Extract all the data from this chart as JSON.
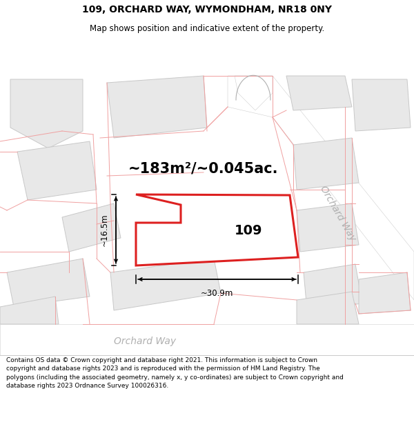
{
  "title": "109, ORCHARD WAY, WYMONDHAM, NR18 0NY",
  "subtitle": "Map shows position and indicative extent of the property.",
  "footer": "Contains OS data © Crown copyright and database right 2021. This information is subject to Crown copyright and database rights 2023 and is reproduced with the permission of HM Land Registry. The polygons (including the associated geometry, namely x, y co-ordinates) are subject to Crown copyright and database rights 2023 Ordnance Survey 100026316.",
  "area_text": "~183m²/~0.045ac.",
  "label_109": "109",
  "dim_width": "~30.9m",
  "dim_height": "~16.5m",
  "road_label_diag": "Orchard Way",
  "road_label_horiz": "Orchard Way",
  "map_bg": "#f5f5f5",
  "bldg_fill": "#e8e8e8",
  "bldg_stroke": "#c8c8c8",
  "parcel_stroke": "#f0a0a0",
  "road_fill": "#ffffff",
  "plot_stroke": "#dd2020",
  "plot_lw": 2.2,
  "figsize": [
    6.0,
    6.25
  ],
  "dpi": 100,
  "title_fontsize": 10,
  "subtitle_fontsize": 8.5,
  "footer_fontsize": 6.5,
  "area_fontsize": 15,
  "label_fontsize": 14,
  "dim_fontsize": 8.5
}
